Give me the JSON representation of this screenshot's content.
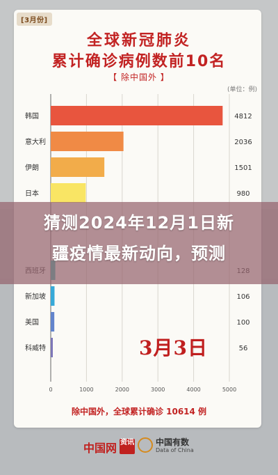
{
  "card": {
    "tag": "[3月份]",
    "title_line1": "全球新冠肺炎",
    "title_line2": "累计确诊病例数前10名",
    "subtitle": "【 除中国外 】",
    "unit": "(单位：例)",
    "date_stamp": "3月3日",
    "footnote": "除中国外，全球累计确诊 10614 例"
  },
  "overlay": {
    "line1": "猜测2024年12月1日新",
    "line2": "疆疫情最新动向，预测"
  },
  "logos": {
    "logo1_text": "中国网",
    "logo1_badge": "资讯",
    "logo2_text": "中国有数",
    "logo2_sub": "Data of China"
  },
  "chart_data": {
    "type": "bar",
    "orientation": "horizontal",
    "categories": [
      "韩国",
      "意大利",
      "伊朗",
      "日本",
      "",
      "",
      "西班牙",
      "新加坡",
      "美国",
      "科威特"
    ],
    "values": [
      4812,
      2036,
      1501,
      980,
      null,
      null,
      128,
      106,
      100,
      56
    ],
    "value_labels": [
      "4812",
      "2036",
      "1501",
      "980",
      "",
      "",
      "128",
      "106",
      "100",
      "56"
    ],
    "colors": [
      "#e8553e",
      "#f08a45",
      "#f2ac4a",
      "#f9e564",
      "#8fd36b",
      "#4fc6a7",
      "#3bbfb7",
      "#37a9d8",
      "#6284cc",
      "#7d77b8"
    ],
    "x_ticks": [
      "0",
      "1000",
      "2000",
      "3000",
      "4000",
      "5000"
    ],
    "xlim": [
      0,
      5000
    ],
    "grid": true
  }
}
